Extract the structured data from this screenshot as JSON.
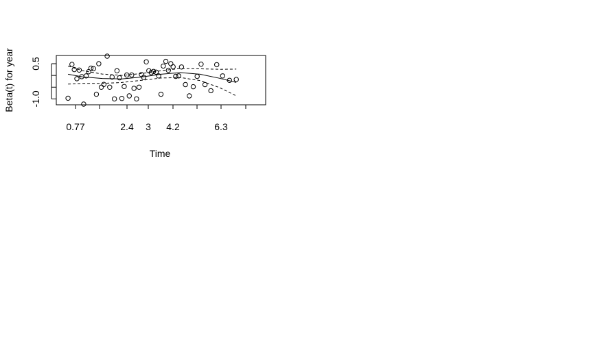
{
  "chart_data": {
    "type": "scatter",
    "xlabel": "Time",
    "ylabel": "Beta(t) for year",
    "x_tick_labels": [
      "0.77",
      "2.4",
      "3",
      "4.2",
      "6.3"
    ],
    "y_ticks": [
      -1.0,
      0.5
    ],
    "y_tick_labels": [
      "-1.0",
      "0.5"
    ],
    "xlim": [
      0,
      10
    ],
    "ylim": [
      -1.25,
      0.85
    ],
    "grid": false,
    "legend": "none",
    "points": [
      {
        "x": 0.25,
        "y": -0.97
      },
      {
        "x": 0.45,
        "y": 0.47
      },
      {
        "x": 0.57,
        "y": 0.25
      },
      {
        "x": 0.7,
        "y": -0.14
      },
      {
        "x": 0.82,
        "y": 0.23
      },
      {
        "x": 0.95,
        "y": -0.05
      },
      {
        "x": 1.05,
        "y": -1.22
      },
      {
        "x": 1.18,
        "y": -0.02
      },
      {
        "x": 1.3,
        "y": 0.16
      },
      {
        "x": 1.42,
        "y": 0.31
      },
      {
        "x": 1.55,
        "y": 0.29
      },
      {
        "x": 1.7,
        "y": -0.8
      },
      {
        "x": 1.82,
        "y": 0.5
      },
      {
        "x": 1.95,
        "y": -0.5
      },
      {
        "x": 2.08,
        "y": -0.38
      },
      {
        "x": 2.25,
        "y": 0.82
      },
      {
        "x": 2.38,
        "y": -0.5
      },
      {
        "x": 2.5,
        "y": -0.07
      },
      {
        "x": 2.62,
        "y": -1.0
      },
      {
        "x": 2.75,
        "y": 0.2
      },
      {
        "x": 2.88,
        "y": -0.1
      },
      {
        "x": 3.0,
        "y": -0.98
      },
      {
        "x": 3.12,
        "y": -0.47
      },
      {
        "x": 3.25,
        "y": 0.02
      },
      {
        "x": 3.38,
        "y": -0.87
      },
      {
        "x": 3.5,
        "y": 0.02
      },
      {
        "x": 3.62,
        "y": -0.55
      },
      {
        "x": 3.75,
        "y": -1.0
      },
      {
        "x": 3.88,
        "y": -0.5
      },
      {
        "x": 4.0,
        "y": 0.04
      },
      {
        "x": 4.12,
        "y": -0.08
      },
      {
        "x": 4.25,
        "y": 0.58
      },
      {
        "x": 4.38,
        "y": 0.2
      },
      {
        "x": 4.5,
        "y": 0.12
      },
      {
        "x": 4.62,
        "y": 0.17
      },
      {
        "x": 4.75,
        "y": 0.14
      },
      {
        "x": 4.88,
        "y": -0.02
      },
      {
        "x": 5.0,
        "y": -0.8
      },
      {
        "x": 5.12,
        "y": 0.4
      },
      {
        "x": 5.25,
        "y": 0.6
      },
      {
        "x": 5.38,
        "y": 0.22
      },
      {
        "x": 5.5,
        "y": 0.5
      },
      {
        "x": 5.62,
        "y": 0.37
      },
      {
        "x": 5.75,
        "y": -0.04
      },
      {
        "x": 5.9,
        "y": -0.02
      },
      {
        "x": 6.05,
        "y": 0.36
      },
      {
        "x": 6.25,
        "y": -0.39
      },
      {
        "x": 6.45,
        "y": -0.87
      },
      {
        "x": 6.65,
        "y": -0.48
      },
      {
        "x": 6.85,
        "y": -0.04
      },
      {
        "x": 7.05,
        "y": 0.48
      },
      {
        "x": 7.25,
        "y": -0.39
      },
      {
        "x": 7.55,
        "y": -0.65
      },
      {
        "x": 7.85,
        "y": 0.46
      },
      {
        "x": 8.15,
        "y": -0.02
      },
      {
        "x": 8.5,
        "y": -0.21
      },
      {
        "x": 8.85,
        "y": -0.17
      }
    ],
    "smooth_fit": [
      {
        "x": 0.25,
        "y": 0.05
      },
      {
        "x": 1.0,
        "y": -0.06
      },
      {
        "x": 2.0,
        "y": -0.13
      },
      {
        "x": 3.0,
        "y": -0.15
      },
      {
        "x": 4.0,
        "y": -0.07
      },
      {
        "x": 5.0,
        "y": 0.05
      },
      {
        "x": 6.0,
        "y": 0.12
      },
      {
        "x": 7.0,
        "y": 0.05
      },
      {
        "x": 8.0,
        "y": -0.12
      },
      {
        "x": 8.85,
        "y": -0.3
      }
    ],
    "upper_band": [
      {
        "x": 0.25,
        "y": 0.4
      },
      {
        "x": 1.0,
        "y": 0.2
      },
      {
        "x": 2.0,
        "y": 0.06
      },
      {
        "x": 3.0,
        "y": 0.0
      },
      {
        "x": 4.0,
        "y": 0.08
      },
      {
        "x": 5.0,
        "y": 0.2
      },
      {
        "x": 6.0,
        "y": 0.3
      },
      {
        "x": 7.0,
        "y": 0.28
      },
      {
        "x": 8.0,
        "y": 0.26
      },
      {
        "x": 8.85,
        "y": 0.27
      }
    ],
    "lower_band": [
      {
        "x": 0.25,
        "y": -0.37
      },
      {
        "x": 1.0,
        "y": -0.34
      },
      {
        "x": 2.0,
        "y": -0.34
      },
      {
        "x": 3.0,
        "y": -0.3
      },
      {
        "x": 4.0,
        "y": -0.21
      },
      {
        "x": 5.0,
        "y": -0.11
      },
      {
        "x": 6.0,
        "y": -0.09
      },
      {
        "x": 7.0,
        "y": -0.22
      },
      {
        "x": 8.0,
        "y": -0.52
      },
      {
        "x": 8.85,
        "y": -0.87
      }
    ]
  }
}
